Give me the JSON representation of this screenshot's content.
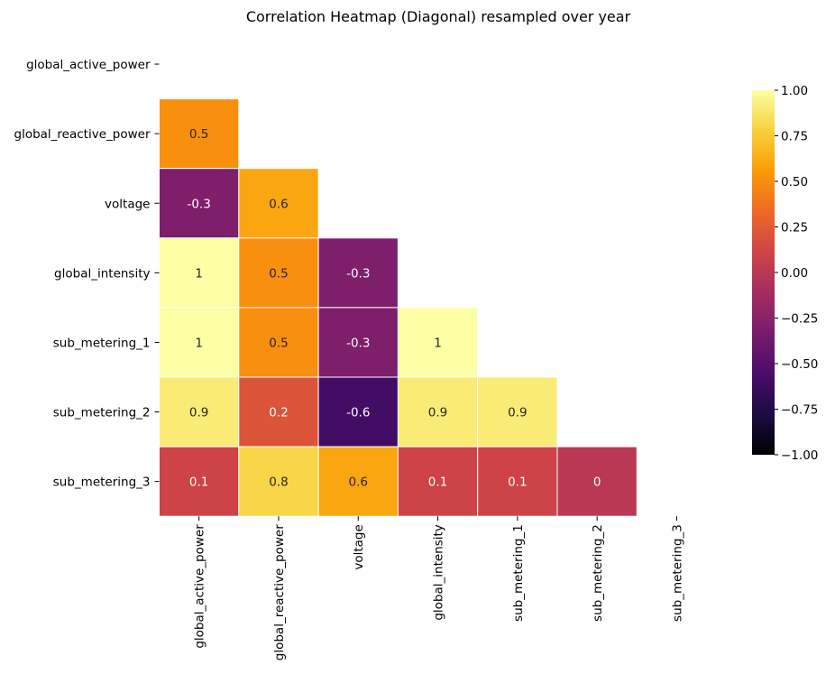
{
  "chart_data": {
    "type": "heatmap",
    "title": "Correlation Heatmap (Diagonal) resampled over year",
    "variables": [
      "global_active_power",
      "global_reactive_power",
      "voltage",
      "global_intensity",
      "sub_metering_1",
      "sub_metering_2",
      "sub_metering_3"
    ],
    "mask": "upper-triangle-including-diagonal",
    "cells": [
      {
        "row": "global_reactive_power",
        "col": "global_active_power",
        "value": 0.5,
        "label": "0.5"
      },
      {
        "row": "voltage",
        "col": "global_active_power",
        "value": -0.3,
        "label": "-0.3"
      },
      {
        "row": "voltage",
        "col": "global_reactive_power",
        "value": 0.6,
        "label": "0.6"
      },
      {
        "row": "global_intensity",
        "col": "global_active_power",
        "value": 1,
        "label": "1"
      },
      {
        "row": "global_intensity",
        "col": "global_reactive_power",
        "value": 0.5,
        "label": "0.5"
      },
      {
        "row": "global_intensity",
        "col": "voltage",
        "value": -0.3,
        "label": "-0.3"
      },
      {
        "row": "sub_metering_1",
        "col": "global_active_power",
        "value": 1,
        "label": "1"
      },
      {
        "row": "sub_metering_1",
        "col": "global_reactive_power",
        "value": 0.5,
        "label": "0.5"
      },
      {
        "row": "sub_metering_1",
        "col": "voltage",
        "value": -0.3,
        "label": "-0.3"
      },
      {
        "row": "sub_metering_1",
        "col": "global_intensity",
        "value": 1,
        "label": "1"
      },
      {
        "row": "sub_metering_2",
        "col": "global_active_power",
        "value": 0.9,
        "label": "0.9"
      },
      {
        "row": "sub_metering_2",
        "col": "global_reactive_power",
        "value": 0.2,
        "label": "0.2"
      },
      {
        "row": "sub_metering_2",
        "col": "voltage",
        "value": -0.6,
        "label": "-0.6"
      },
      {
        "row": "sub_metering_2",
        "col": "global_intensity",
        "value": 0.9,
        "label": "0.9"
      },
      {
        "row": "sub_metering_2",
        "col": "sub_metering_1",
        "value": 0.9,
        "label": "0.9"
      },
      {
        "row": "sub_metering_3",
        "col": "global_active_power",
        "value": 0.1,
        "label": "0.1"
      },
      {
        "row": "sub_metering_3",
        "col": "global_reactive_power",
        "value": 0.8,
        "label": "0.8"
      },
      {
        "row": "sub_metering_3",
        "col": "voltage",
        "value": 0.6,
        "label": "0.6"
      },
      {
        "row": "sub_metering_3",
        "col": "global_intensity",
        "value": 0.1,
        "label": "0.1"
      },
      {
        "row": "sub_metering_3",
        "col": "sub_metering_1",
        "value": 0.1,
        "label": "0.1"
      },
      {
        "row": "sub_metering_3",
        "col": "sub_metering_2",
        "value": 0,
        "label": "0"
      }
    ],
    "colorbar": {
      "colormap": "inferno",
      "range": [
        -1,
        1
      ],
      "ticks": [
        "1.00",
        "0.75",
        "0.50",
        "0.25",
        "0.00",
        "−0.25",
        "−0.50",
        "−0.75",
        "−1.00"
      ],
      "tick_values": [
        1,
        0.75,
        0.5,
        0.25,
        0,
        -0.25,
        -0.5,
        -0.75,
        -1
      ]
    },
    "colormap_stops": [
      "#000004",
      "#1b0c41",
      "#4a0c6b",
      "#781c6d",
      "#a52c60",
      "#cf4446",
      "#ed6925",
      "#fb9b06",
      "#f7d13d",
      "#fcffa4"
    ],
    "annotation_colors": {
      "light": "#ffffff",
      "dark": "#262626"
    }
  }
}
